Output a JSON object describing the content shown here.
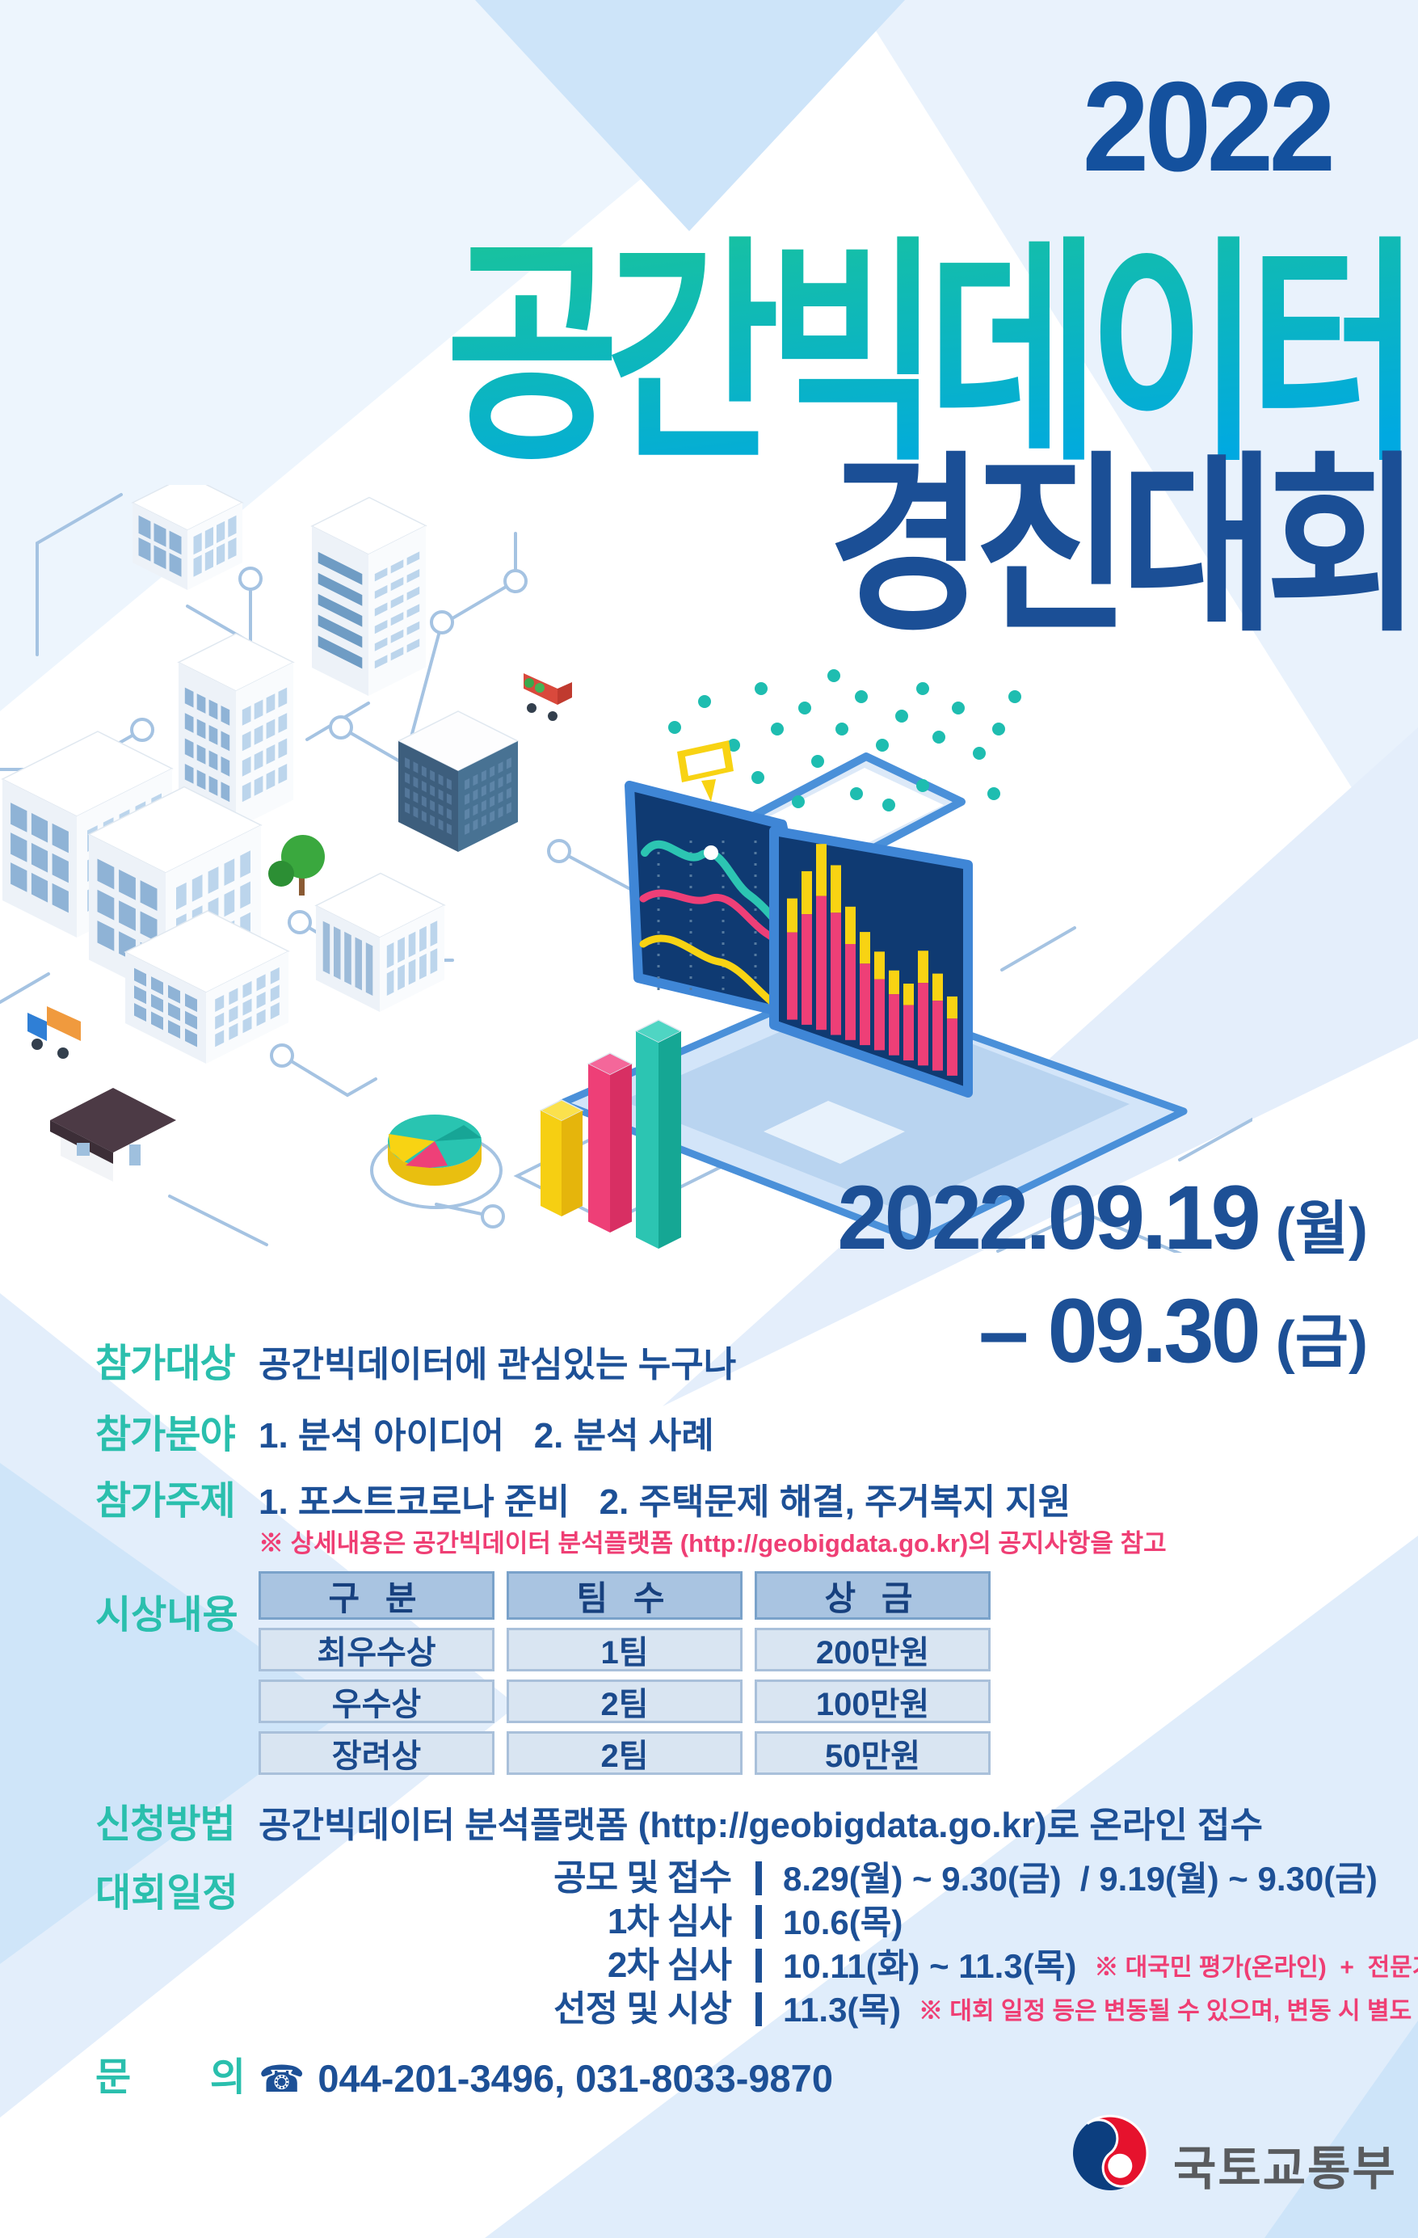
{
  "poster": {
    "year": "2022",
    "title": "공간빅데이터",
    "subtitle": "경진대회",
    "dates": {
      "line1_num": "2022.09.19",
      "line1_day": "(월)",
      "line2_num": "– 09.30",
      "line2_day": "(금)"
    }
  },
  "sections": {
    "target": {
      "label": "참가대상",
      "content": "공간빅데이터에 관심있는 누구나"
    },
    "field": {
      "label": "참가분야",
      "content": "1. 분석 아이디어   2. 분석 사례"
    },
    "topic": {
      "label": "참가주제",
      "content": "1. 포스트코로나 준비   2. 주택문제 해결, 주거복지 지원",
      "note": "※ 상세내용은 공간빅데이터 분석플랫폼 (http://geobigdata.go.kr)의 공지사항을 참고"
    },
    "awards": {
      "label": "시상내용"
    },
    "apply": {
      "label": "신청방법",
      "content": "공간빅데이터 분석플랫폼 (http://geobigdata.go.kr)로 온라인 접수"
    },
    "schedule": {
      "label": "대회일정"
    },
    "contact": {
      "label": "문        의",
      "phone_icon": "☎",
      "content": "044-201-3496, 031-8033-9870"
    }
  },
  "awards_table": {
    "headers": [
      "구 분",
      "팀 수",
      "상 금"
    ],
    "rows": [
      [
        "최우수상",
        "1팀",
        "200만원"
      ],
      [
        "우수상",
        "2팀",
        "100만원"
      ],
      [
        "장려상",
        "2팀",
        "50만원"
      ]
    ]
  },
  "schedule_rows": [
    {
      "name": "공모 및 접수",
      "value": "8.29(월) ~ 9.30(금)  / 9.19(월) ~ 9.30(금)",
      "note": ""
    },
    {
      "name": "1차 심사",
      "value": "10.6(목)",
      "note": ""
    },
    {
      "name": "2차 심사",
      "value": "10.11(화) ~ 11.3(목)",
      "note": "※ 대국민 평가(온라인)  +  전문가 평가(제안자 발표)"
    },
    {
      "name": "선정 및 시상",
      "value": "11.3(목)",
      "note": "※ 대회 일정 등은 변동될 수 있으며, 변동 시 별도 공지할 예정입니다."
    }
  ],
  "footer": {
    "org": "국토교통부"
  },
  "colors": {
    "accent_teal": "#2ABFAD",
    "navy": "#1D5096",
    "title_navy": "#14519E",
    "gradient_start": "#19C39C",
    "gradient_end": "#00A9E1",
    "note_pink": "#EF3E74",
    "chart_teal": "#2CC5B2",
    "chart_pink": "#EE3F77",
    "chart_yellow": "#F8D313"
  }
}
